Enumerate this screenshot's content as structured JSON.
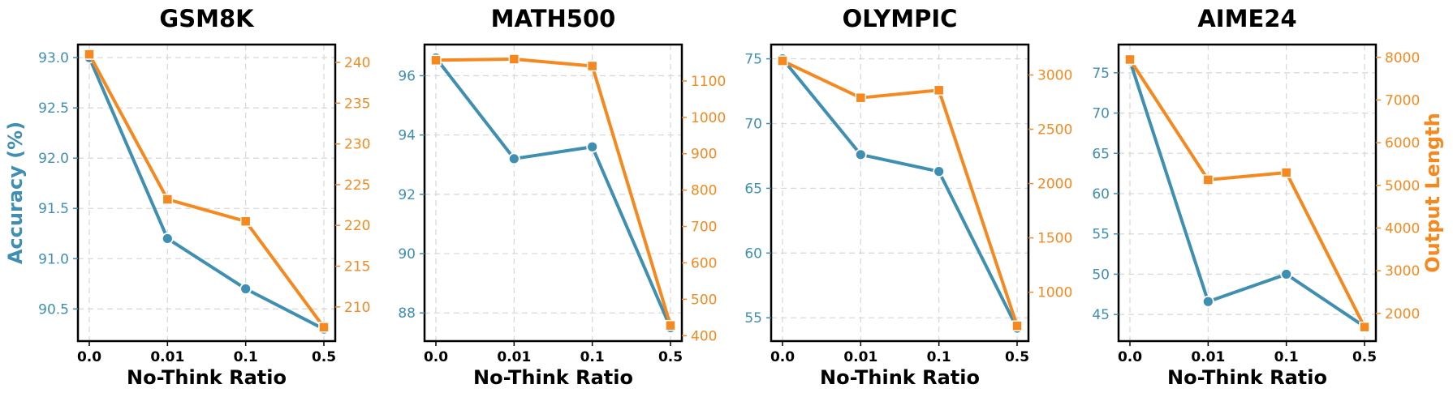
{
  "chart_data": [
    {
      "type": "line",
      "title": "GSM8K",
      "xlabel": "No-Think Ratio",
      "categories": [
        "0.0",
        "0.01",
        "0.1",
        "0.5"
      ],
      "left_axis": {
        "label": "Accuracy (%)",
        "ylim": [
          90.18,
          93.13
        ],
        "ticks": [
          90.5,
          91.0,
          91.5,
          92.0,
          92.5,
          93.0
        ],
        "tick_labels": [
          "90.5",
          "91.0",
          "91.5",
          "92.0",
          "92.5",
          "93.0"
        ]
      },
      "right_axis": {
        "label": "Output Length",
        "ylim": [
          205.8,
          242.2
        ],
        "ticks": [
          210,
          215,
          220,
          225,
          230,
          235,
          240
        ],
        "tick_labels": [
          "210",
          "215",
          "220",
          "225",
          "230",
          "235",
          "240"
        ]
      },
      "series": [
        {
          "name": "Accuracy (%)",
          "axis": "left",
          "marker": "circle",
          "values": [
            93.0,
            91.2,
            90.7,
            90.3
          ]
        },
        {
          "name": "Output Length",
          "axis": "right",
          "marker": "square",
          "values": [
            241.0,
            223.2,
            220.5,
            207.5
          ]
        }
      ]
    },
    {
      "type": "line",
      "title": "MATH500",
      "xlabel": "No-Think Ratio",
      "categories": [
        "0.0",
        "0.01",
        "0.1",
        "0.5"
      ],
      "left_axis": {
        "label": "",
        "ylim": [
          87.05,
          97.05
        ],
        "ticks": [
          88,
          90,
          92,
          94,
          96
        ],
        "tick_labels": [
          "88",
          "90",
          "92",
          "94",
          "96"
        ]
      },
      "right_axis": {
        "label": "",
        "ylim": [
          385,
          1200
        ],
        "ticks": [
          400,
          500,
          600,
          700,
          800,
          900,
          1000,
          1100
        ],
        "tick_labels": [
          "400",
          "500",
          "600",
          "700",
          "800",
          "900",
          "1000",
          "1100"
        ]
      },
      "series": [
        {
          "name": "Accuracy (%)",
          "axis": "left",
          "marker": "circle",
          "values": [
            96.6,
            93.2,
            93.6,
            87.5
          ]
        },
        {
          "name": "Output Length",
          "axis": "right",
          "marker": "square",
          "values": [
            1157,
            1160,
            1141,
            428
          ]
        }
      ]
    },
    {
      "type": "line",
      "title": "OLYMPIC",
      "xlabel": "No-Think Ratio",
      "categories": [
        "0.0",
        "0.01",
        "0.1",
        "0.5"
      ],
      "left_axis": {
        "label": "",
        "ylim": [
          53.2,
          76.1
        ],
        "ticks": [
          55,
          60,
          65,
          70,
          75
        ],
        "tick_labels": [
          "55",
          "60",
          "65",
          "70",
          "75"
        ]
      },
      "right_axis": {
        "label": "",
        "ylim": [
          550,
          3280
        ],
        "ticks": [
          1000,
          1500,
          2000,
          2500,
          3000
        ],
        "tick_labels": [
          "1000",
          "1500",
          "2000",
          "2500",
          "3000"
        ]
      },
      "series": [
        {
          "name": "Accuracy (%)",
          "axis": "left",
          "marker": "circle",
          "values": [
            75.0,
            67.6,
            66.3,
            54.2
          ]
        },
        {
          "name": "Output Length",
          "axis": "right",
          "marker": "square",
          "values": [
            3130,
            2790,
            2860,
            690
          ]
        }
      ]
    },
    {
      "type": "line",
      "title": "AIME24",
      "xlabel": "No-Think Ratio",
      "categories": [
        "0.0",
        "0.01",
        "0.1",
        "0.5"
      ],
      "left_axis": {
        "label": "",
        "ylim": [
          41.7,
          78.5
        ],
        "ticks": [
          45,
          50,
          55,
          60,
          65,
          70,
          75
        ],
        "tick_labels": [
          "45",
          "50",
          "55",
          "60",
          "65",
          "70",
          "75"
        ]
      },
      "right_axis": {
        "label": "Output Length",
        "ylim": [
          1350,
          8300
        ],
        "ticks": [
          2000,
          3000,
          4000,
          5000,
          6000,
          7000,
          8000
        ],
        "tick_labels": [
          "2000",
          "3000",
          "4000",
          "5000",
          "6000",
          "7000",
          "8000"
        ]
      },
      "series": [
        {
          "name": "Accuracy (%)",
          "axis": "left",
          "marker": "circle",
          "values": [
            76.5,
            46.6,
            50.0,
            43.5
          ]
        },
        {
          "name": "Output Length",
          "axis": "right",
          "marker": "square",
          "values": [
            7950,
            5130,
            5300,
            1680
          ]
        }
      ]
    }
  ],
  "colors": {
    "accuracy": "#3f8fb3",
    "output_length": "#f5891f",
    "grid": "#d9d9d9",
    "axes": "#000000"
  }
}
